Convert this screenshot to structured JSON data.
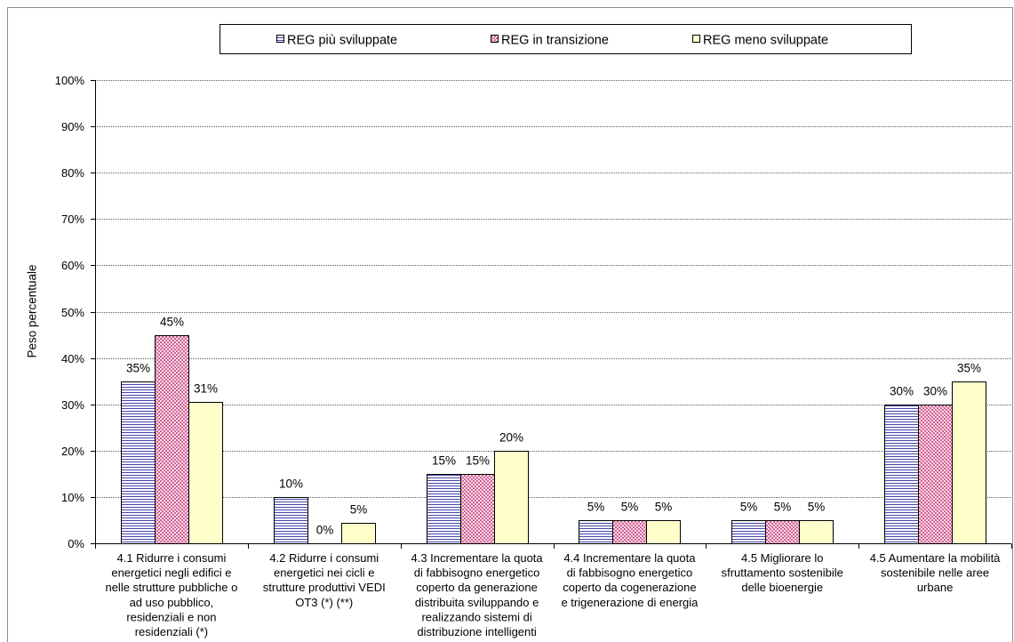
{
  "chart_data": {
    "type": "bar",
    "ylabel": "Peso percentuale",
    "ylim": [
      0,
      100
    ],
    "yticks": [
      0,
      10,
      20,
      30,
      40,
      50,
      60,
      70,
      80,
      90,
      100
    ],
    "ytick_labels": [
      "0%",
      "10%",
      "20%",
      "30%",
      "40%",
      "50%",
      "60%",
      "70%",
      "80%",
      "90%",
      "100%"
    ],
    "grid": true,
    "legend": "top",
    "categories": [
      [
        "4.1 Ridurre i consumi",
        "energetici negli edifici e",
        "nelle strutture pubbliche o",
        "ad uso pubblico,",
        "residenziali e non",
        "residenziali (*)"
      ],
      [
        "4.2 Ridurre i consumi",
        "energetici nei cicli e",
        "strutture produttivi VEDI",
        "OT3 (*) (**)"
      ],
      [
        "4.3 Incrementare la quota",
        "di fabbisogno energetico",
        "coperto da generazione",
        "distribuita sviluppando e",
        "realizzando sistemi di",
        "distribuzione intelligenti"
      ],
      [
        "4.4 Incrementare la quota",
        "di fabbisogno energetico",
        "coperto da cogenerazione",
        "e trigenerazione di energia"
      ],
      [
        "4.5 Migliorare lo",
        "sfruttamento sostenibile",
        "delle bioenergie"
      ],
      [
        "4.5 Aumentare la mobilità",
        "sostenibile nelle aree",
        "urbane"
      ]
    ],
    "series": [
      {
        "name": "REG più sviluppate",
        "pattern": "horizontal-lines",
        "color": "#4646a8",
        "background": "#ffffff",
        "values": [
          35,
          10,
          15,
          5,
          5,
          30
        ],
        "labels": [
          "35%",
          "10%",
          "15%",
          "5%",
          "5%",
          "30%"
        ]
      },
      {
        "name": "REG in transizione",
        "pattern": "dots",
        "color": "#c8407e",
        "background": "#f7d9e6",
        "values": [
          45,
          0,
          15,
          5,
          5,
          30
        ],
        "labels": [
          "45%",
          "0%",
          "15%",
          "5%",
          "5%",
          "30%"
        ]
      },
      {
        "name": "REG meno sviluppate",
        "pattern": "solid",
        "color": "#ffffcc",
        "values": [
          30.5,
          4.5,
          20,
          5,
          5,
          35
        ],
        "labels": [
          "31%",
          "5%",
          "20%",
          "5%",
          "5%",
          "35%"
        ]
      }
    ]
  }
}
